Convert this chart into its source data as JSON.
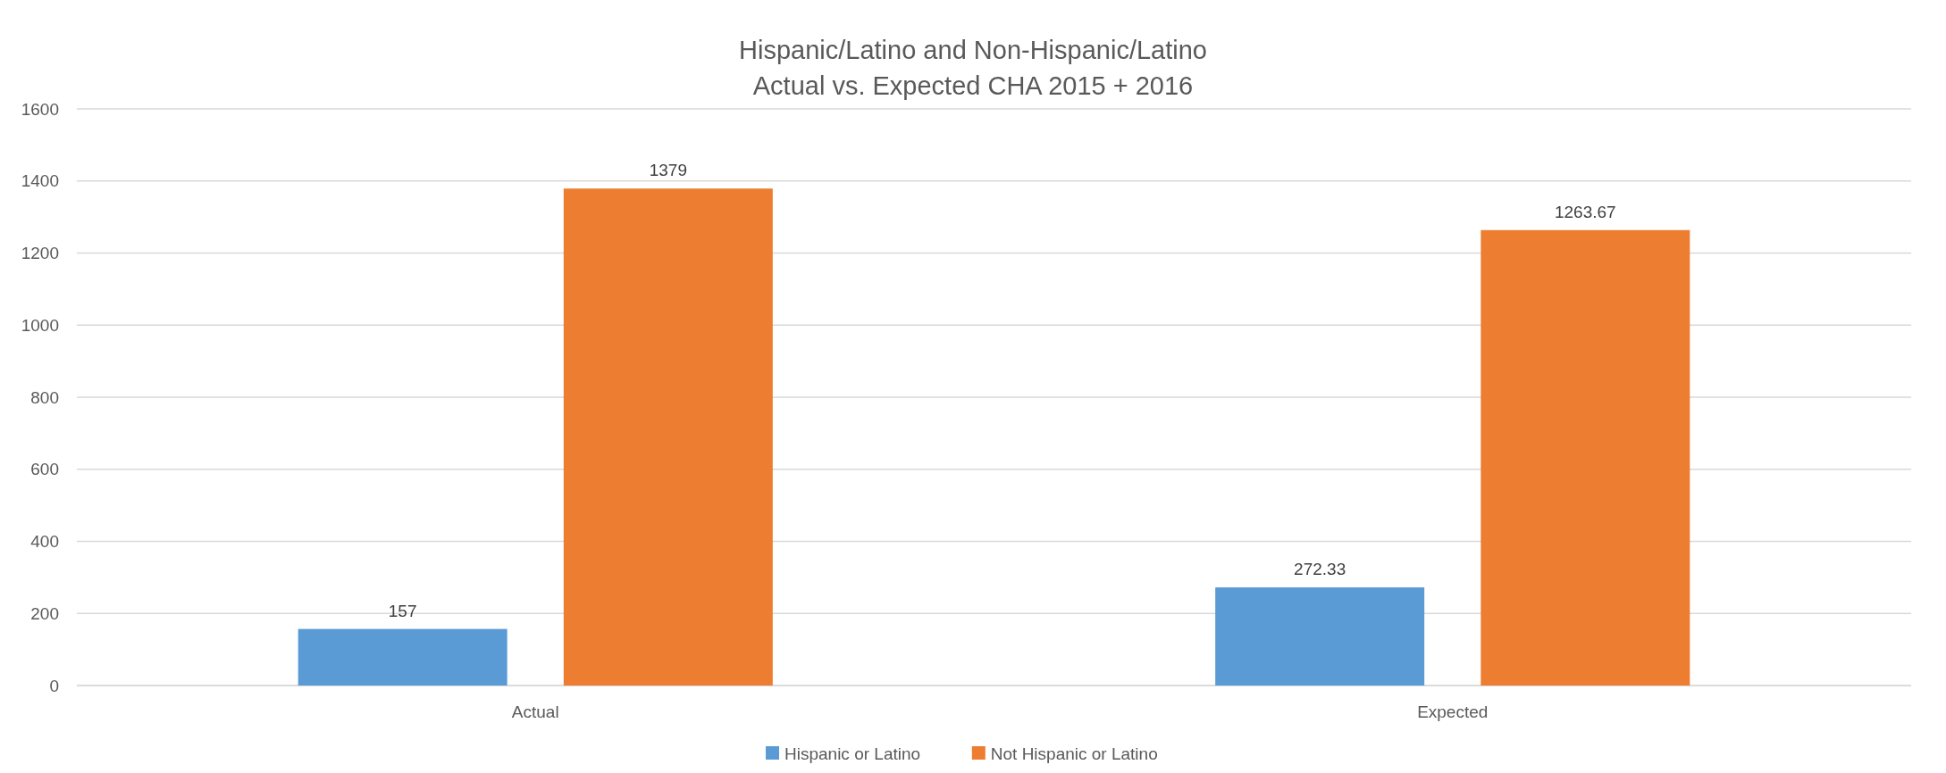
{
  "chart_data": {
    "type": "bar",
    "title": "Hispanic/Latino and Non-Hispanic/Latino\nActual vs. Expected CHA 2015 + 2016",
    "categories": [
      "Actual",
      "Expected"
    ],
    "series": [
      {
        "name": "Hispanic or Latino",
        "color": "#5b9bd5",
        "values": [
          157,
          272.33
        ]
      },
      {
        "name": "Not Hispanic or Latino",
        "color": "#ed7d31",
        "values": [
          1379,
          1263.67
        ]
      }
    ],
    "ylim": [
      0,
      1600
    ],
    "yticks": [
      0,
      200,
      400,
      600,
      800,
      1000,
      1200,
      1400,
      1600
    ],
    "grid": "y",
    "legend": "bottom",
    "data_labels": true
  }
}
